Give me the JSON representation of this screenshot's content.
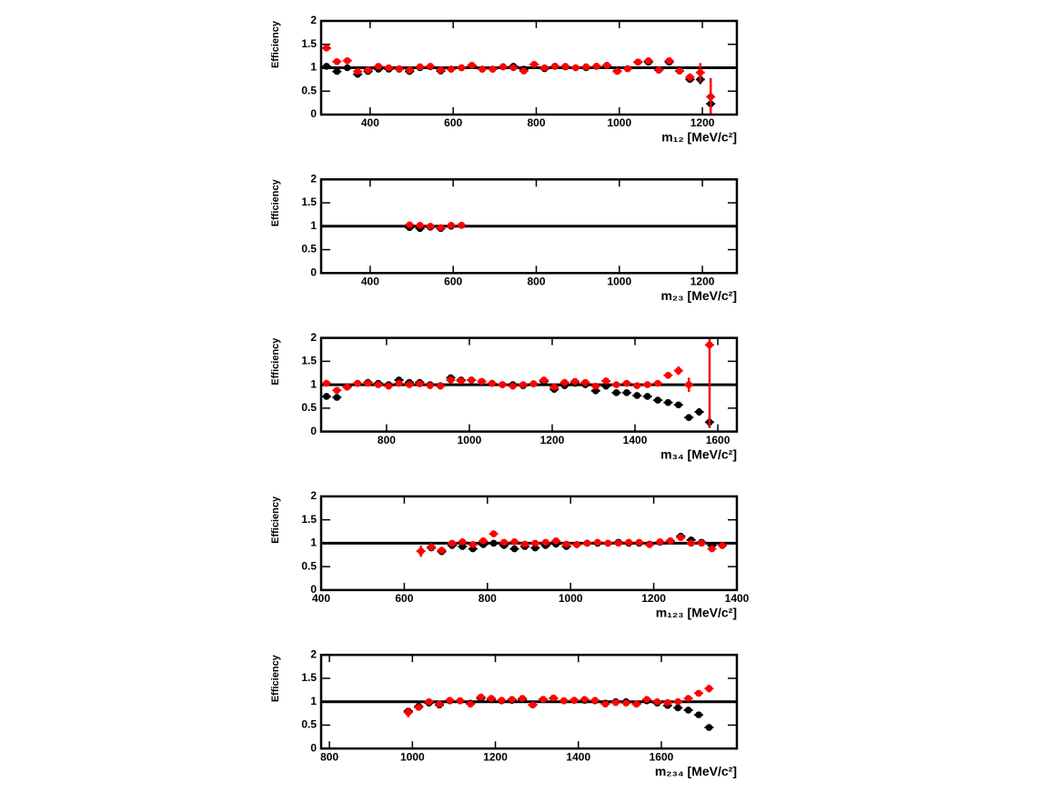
{
  "chart_data": [
    {
      "type": "scatter",
      "y_label": "Efficiency",
      "x_label": "m₁₂ [MeV/c²]",
      "xlim": [
        282,
        1283
      ],
      "xticks": [
        400,
        600,
        800,
        1000,
        1200
      ],
      "ylim": [
        0,
        2
      ],
      "yticks": [
        0,
        0.5,
        1,
        1.5,
        2
      ],
      "hline": 1,
      "x": [
        295,
        320,
        345,
        370,
        395,
        420,
        445,
        470,
        495,
        520,
        545,
        570,
        595,
        620,
        645,
        670,
        695,
        720,
        745,
        770,
        795,
        820,
        845,
        870,
        895,
        920,
        945,
        970,
        995,
        1020,
        1045,
        1070,
        1095,
        1120,
        1145,
        1170,
        1195,
        1220
      ],
      "series": [
        {
          "color": "#000000",
          "values": [
            1.03,
            0.92,
            1.0,
            0.86,
            0.92,
            0.97,
            0.97,
            0.97,
            0.92,
            1.0,
            1.02,
            0.93,
            0.97,
            1.0,
            1.05,
            0.97,
            0.97,
            1.02,
            1.03,
            0.97,
            1.07,
            0.98,
            1.03,
            1.02,
            1.0,
            1.0,
            1.03,
            1.05,
            0.93,
            0.98,
            1.12,
            1.12,
            0.95,
            1.12,
            0.93,
            0.75,
            0.75,
            0.23
          ],
          "errors": [
            0.03,
            0.03,
            0.03,
            0.03,
            0.03,
            0.03,
            0.03,
            0.03,
            0.03,
            0.03,
            0.03,
            0.03,
            0.03,
            0.03,
            0.03,
            0.03,
            0.03,
            0.03,
            0.03,
            0.03,
            0.03,
            0.03,
            0.03,
            0.03,
            0.03,
            0.03,
            0.03,
            0.03,
            0.03,
            0.03,
            0.03,
            0.03,
            0.03,
            0.04,
            0.04,
            0.06,
            0.1,
            0.15
          ]
        },
        {
          "color": "#ff0000",
          "values": [
            1.42,
            1.13,
            1.15,
            0.92,
            0.95,
            1.03,
            1.0,
            0.98,
            0.95,
            1.02,
            1.03,
            0.95,
            0.97,
            1.0,
            1.05,
            0.97,
            0.97,
            1.02,
            1.0,
            0.93,
            1.07,
            1.0,
            1.03,
            1.03,
            1.0,
            1.02,
            1.03,
            1.05,
            0.92,
            0.98,
            1.12,
            1.15,
            0.95,
            1.15,
            0.93,
            0.8,
            0.9,
            0.38
          ],
          "errors": [
            0.06,
            0.04,
            0.04,
            0.03,
            0.03,
            0.03,
            0.03,
            0.03,
            0.03,
            0.03,
            0.03,
            0.03,
            0.03,
            0.03,
            0.03,
            0.03,
            0.03,
            0.03,
            0.03,
            0.03,
            0.03,
            0.03,
            0.03,
            0.03,
            0.03,
            0.03,
            0.03,
            0.03,
            0.03,
            0.03,
            0.04,
            0.04,
            0.04,
            0.07,
            0.05,
            0.08,
            0.2,
            0.4
          ]
        }
      ]
    },
    {
      "type": "scatter",
      "y_label": "Efficiency",
      "x_label": "m₂₃ [MeV/c²]",
      "xlim": [
        282,
        1283
      ],
      "xticks": [
        400,
        600,
        800,
        1000,
        1200
      ],
      "ylim": [
        0,
        2
      ],
      "yticks": [
        0,
        0.5,
        1,
        1.5,
        2
      ],
      "hline": 1,
      "x": [
        495,
        520,
        545,
        570,
        595,
        620
      ],
      "series": [
        {
          "color": "#000000",
          "values": [
            0.97,
            0.95,
            0.98,
            0.95,
            1.0,
            1.02
          ],
          "errors": [
            0.03,
            0.03,
            0.03,
            0.03,
            0.03,
            0.03
          ]
        },
        {
          "color": "#ff0000",
          "values": [
            1.03,
            1.02,
            1.0,
            0.97,
            1.02,
            1.02
          ],
          "errors": [
            0.03,
            0.03,
            0.03,
            0.03,
            0.03,
            0.03
          ]
        }
      ]
    },
    {
      "type": "scatter",
      "y_label": "Efficiency",
      "x_label": "m₃₄ [MeV/c²]",
      "xlim": [
        642,
        1646
      ],
      "xticks": [
        800,
        1000,
        1200,
        1400,
        1600
      ],
      "ylim": [
        0,
        2
      ],
      "yticks": [
        0,
        0.5,
        1,
        1.5,
        2
      ],
      "hline": 1,
      "x": [
        655,
        680,
        705,
        730,
        755,
        780,
        805,
        830,
        855,
        880,
        905,
        930,
        955,
        980,
        1005,
        1030,
        1055,
        1080,
        1105,
        1130,
        1155,
        1180,
        1205,
        1230,
        1255,
        1280,
        1305,
        1330,
        1355,
        1380,
        1405,
        1430,
        1455,
        1480,
        1505,
        1530,
        1555,
        1580
      ],
      "series": [
        {
          "color": "#000000",
          "values": [
            0.75,
            0.73,
            0.95,
            1.03,
            1.05,
            1.03,
            1.0,
            1.1,
            1.05,
            1.05,
            1.0,
            0.98,
            1.15,
            1.1,
            1.1,
            1.07,
            1.03,
            1.0,
            1.0,
            0.98,
            1.02,
            1.07,
            0.9,
            0.98,
            1.03,
            1.0,
            0.87,
            0.97,
            0.83,
            0.83,
            0.77,
            0.75,
            0.67,
            0.62,
            0.57,
            0.3,
            0.42,
            0.2
          ],
          "errors": [
            0.04,
            0.04,
            0.03,
            0.03,
            0.03,
            0.03,
            0.03,
            0.03,
            0.03,
            0.03,
            0.03,
            0.03,
            0.03,
            0.03,
            0.03,
            0.03,
            0.03,
            0.03,
            0.03,
            0.03,
            0.03,
            0.03,
            0.03,
            0.03,
            0.03,
            0.03,
            0.03,
            0.03,
            0.03,
            0.03,
            0.03,
            0.03,
            0.03,
            0.03,
            0.03,
            0.04,
            0.08,
            0.12
          ]
        },
        {
          "color": "#ff0000",
          "values": [
            1.03,
            0.88,
            0.95,
            1.03,
            1.03,
            1.0,
            0.97,
            1.03,
            1.0,
            1.02,
            0.98,
            0.97,
            1.1,
            1.08,
            1.1,
            1.07,
            1.03,
            1.0,
            0.97,
            1.0,
            1.02,
            1.1,
            0.95,
            1.05,
            1.07,
            1.05,
            0.97,
            1.08,
            1.0,
            1.03,
            0.98,
            1.0,
            1.03,
            1.2,
            1.3,
            1.0,
            null,
            1.85
          ],
          "errors": [
            0.04,
            0.05,
            0.03,
            0.03,
            0.03,
            0.03,
            0.03,
            0.03,
            0.03,
            0.03,
            0.03,
            0.03,
            0.03,
            0.03,
            0.03,
            0.03,
            0.03,
            0.03,
            0.03,
            0.03,
            0.03,
            0.03,
            0.03,
            0.03,
            0.03,
            0.03,
            0.03,
            0.03,
            0.03,
            0.03,
            0.03,
            0.03,
            0.04,
            0.07,
            0.09,
            0.15,
            null,
            1.75
          ]
        }
      ]
    },
    {
      "type": "scatter",
      "y_label": "Efficiency",
      "x_label": "m₁₂₃ [MeV/c²]",
      "xlim": [
        400,
        1400
      ],
      "xticks": [
        400,
        600,
        800,
        1000,
        1200,
        1400
      ],
      "ylim": [
        0,
        2
      ],
      "yticks": [
        0,
        0.5,
        1,
        1.5,
        2
      ],
      "hline": 1,
      "x": [
        640,
        665,
        690,
        715,
        740,
        765,
        790,
        815,
        840,
        865,
        890,
        915,
        940,
        965,
        990,
        1015,
        1040,
        1065,
        1090,
        1115,
        1140,
        1165,
        1190,
        1215,
        1240,
        1265,
        1290,
        1315,
        1340,
        1365
      ],
      "series": [
        {
          "color": "#000000",
          "values": [
            null,
            0.9,
            0.82,
            0.95,
            0.93,
            0.88,
            0.97,
            1.0,
            0.95,
            0.88,
            0.93,
            0.9,
            0.95,
            0.98,
            0.93,
            0.97,
            1.0,
            1.0,
            1.0,
            1.02,
            1.0,
            1.0,
            0.98,
            1.02,
            1.05,
            1.15,
            1.07,
            1.02,
            0.95,
            0.95
          ],
          "errors": [
            null,
            0.05,
            0.04,
            0.03,
            0.03,
            0.03,
            0.03,
            0.03,
            0.03,
            0.03,
            0.03,
            0.03,
            0.03,
            0.03,
            0.03,
            0.03,
            0.03,
            0.03,
            0.03,
            0.03,
            0.03,
            0.03,
            0.03,
            0.03,
            0.03,
            0.03,
            0.03,
            0.03,
            0.03,
            0.03
          ]
        },
        {
          "color": "#ff0000",
          "values": [
            0.83,
            0.92,
            0.85,
            1.0,
            1.03,
            0.97,
            1.05,
            1.2,
            1.02,
            1.03,
            0.98,
            1.0,
            1.02,
            1.05,
            0.98,
            0.97,
            1.0,
            1.02,
            1.0,
            1.0,
            1.02,
            1.02,
            0.97,
            1.03,
            1.05,
            1.12,
            1.0,
            1.0,
            0.88,
            0.95
          ],
          "errors": [
            0.12,
            0.08,
            0.07,
            0.04,
            0.04,
            0.03,
            0.03,
            0.03,
            0.03,
            0.03,
            0.03,
            0.03,
            0.03,
            0.03,
            0.03,
            0.03,
            0.03,
            0.03,
            0.03,
            0.03,
            0.03,
            0.03,
            0.03,
            0.03,
            0.03,
            0.03,
            0.03,
            0.03,
            0.03,
            0.03
          ]
        }
      ]
    },
    {
      "type": "scatter",
      "y_label": "Efficiency",
      "x_label": "m₂₃₄ [MeV/c²]",
      "xlim": [
        780,
        1782
      ],
      "xticks": [
        800,
        1000,
        1200,
        1400,
        1600
      ],
      "ylim": [
        0,
        2
      ],
      "yticks": [
        0,
        0.5,
        1,
        1.5,
        2
      ],
      "hline": 1,
      "x": [
        990,
        1015,
        1040,
        1065,
        1090,
        1115,
        1140,
        1165,
        1190,
        1215,
        1240,
        1265,
        1290,
        1315,
        1340,
        1365,
        1390,
        1415,
        1440,
        1465,
        1490,
        1515,
        1540,
        1565,
        1590,
        1615,
        1640,
        1665,
        1690,
        1715
      ],
      "series": [
        {
          "color": "#000000",
          "values": [
            0.8,
            0.9,
            0.97,
            0.93,
            1.02,
            1.02,
            0.97,
            1.07,
            1.05,
            1.02,
            1.03,
            1.05,
            0.93,
            1.05,
            1.07,
            1.02,
            1.03,
            1.03,
            1.02,
            0.97,
            1.0,
            1.0,
            0.95,
            1.02,
            0.97,
            0.92,
            0.87,
            0.82,
            0.72,
            0.45
          ],
          "errors": [
            0.05,
            0.04,
            0.03,
            0.03,
            0.03,
            0.03,
            0.03,
            0.03,
            0.03,
            0.03,
            0.03,
            0.03,
            0.03,
            0.03,
            0.03,
            0.03,
            0.03,
            0.03,
            0.03,
            0.03,
            0.03,
            0.03,
            0.03,
            0.03,
            0.03,
            0.03,
            0.03,
            0.03,
            0.03,
            0.03
          ]
        },
        {
          "color": "#ff0000",
          "values": [
            0.77,
            0.88,
            1.0,
            0.95,
            1.03,
            1.02,
            0.95,
            1.1,
            1.07,
            1.03,
            1.05,
            1.07,
            0.93,
            1.05,
            1.08,
            1.02,
            1.03,
            1.05,
            1.03,
            0.95,
            0.98,
            0.97,
            0.95,
            1.05,
            1.0,
            0.98,
            1.0,
            1.07,
            1.18,
            1.28
          ],
          "errors": [
            0.1,
            0.06,
            0.04,
            0.03,
            0.03,
            0.03,
            0.03,
            0.03,
            0.03,
            0.03,
            0.03,
            0.03,
            0.03,
            0.03,
            0.03,
            0.03,
            0.03,
            0.03,
            0.03,
            0.03,
            0.03,
            0.03,
            0.03,
            0.03,
            0.03,
            0.03,
            0.03,
            0.04,
            0.05,
            0.08
          ]
        }
      ]
    }
  ]
}
